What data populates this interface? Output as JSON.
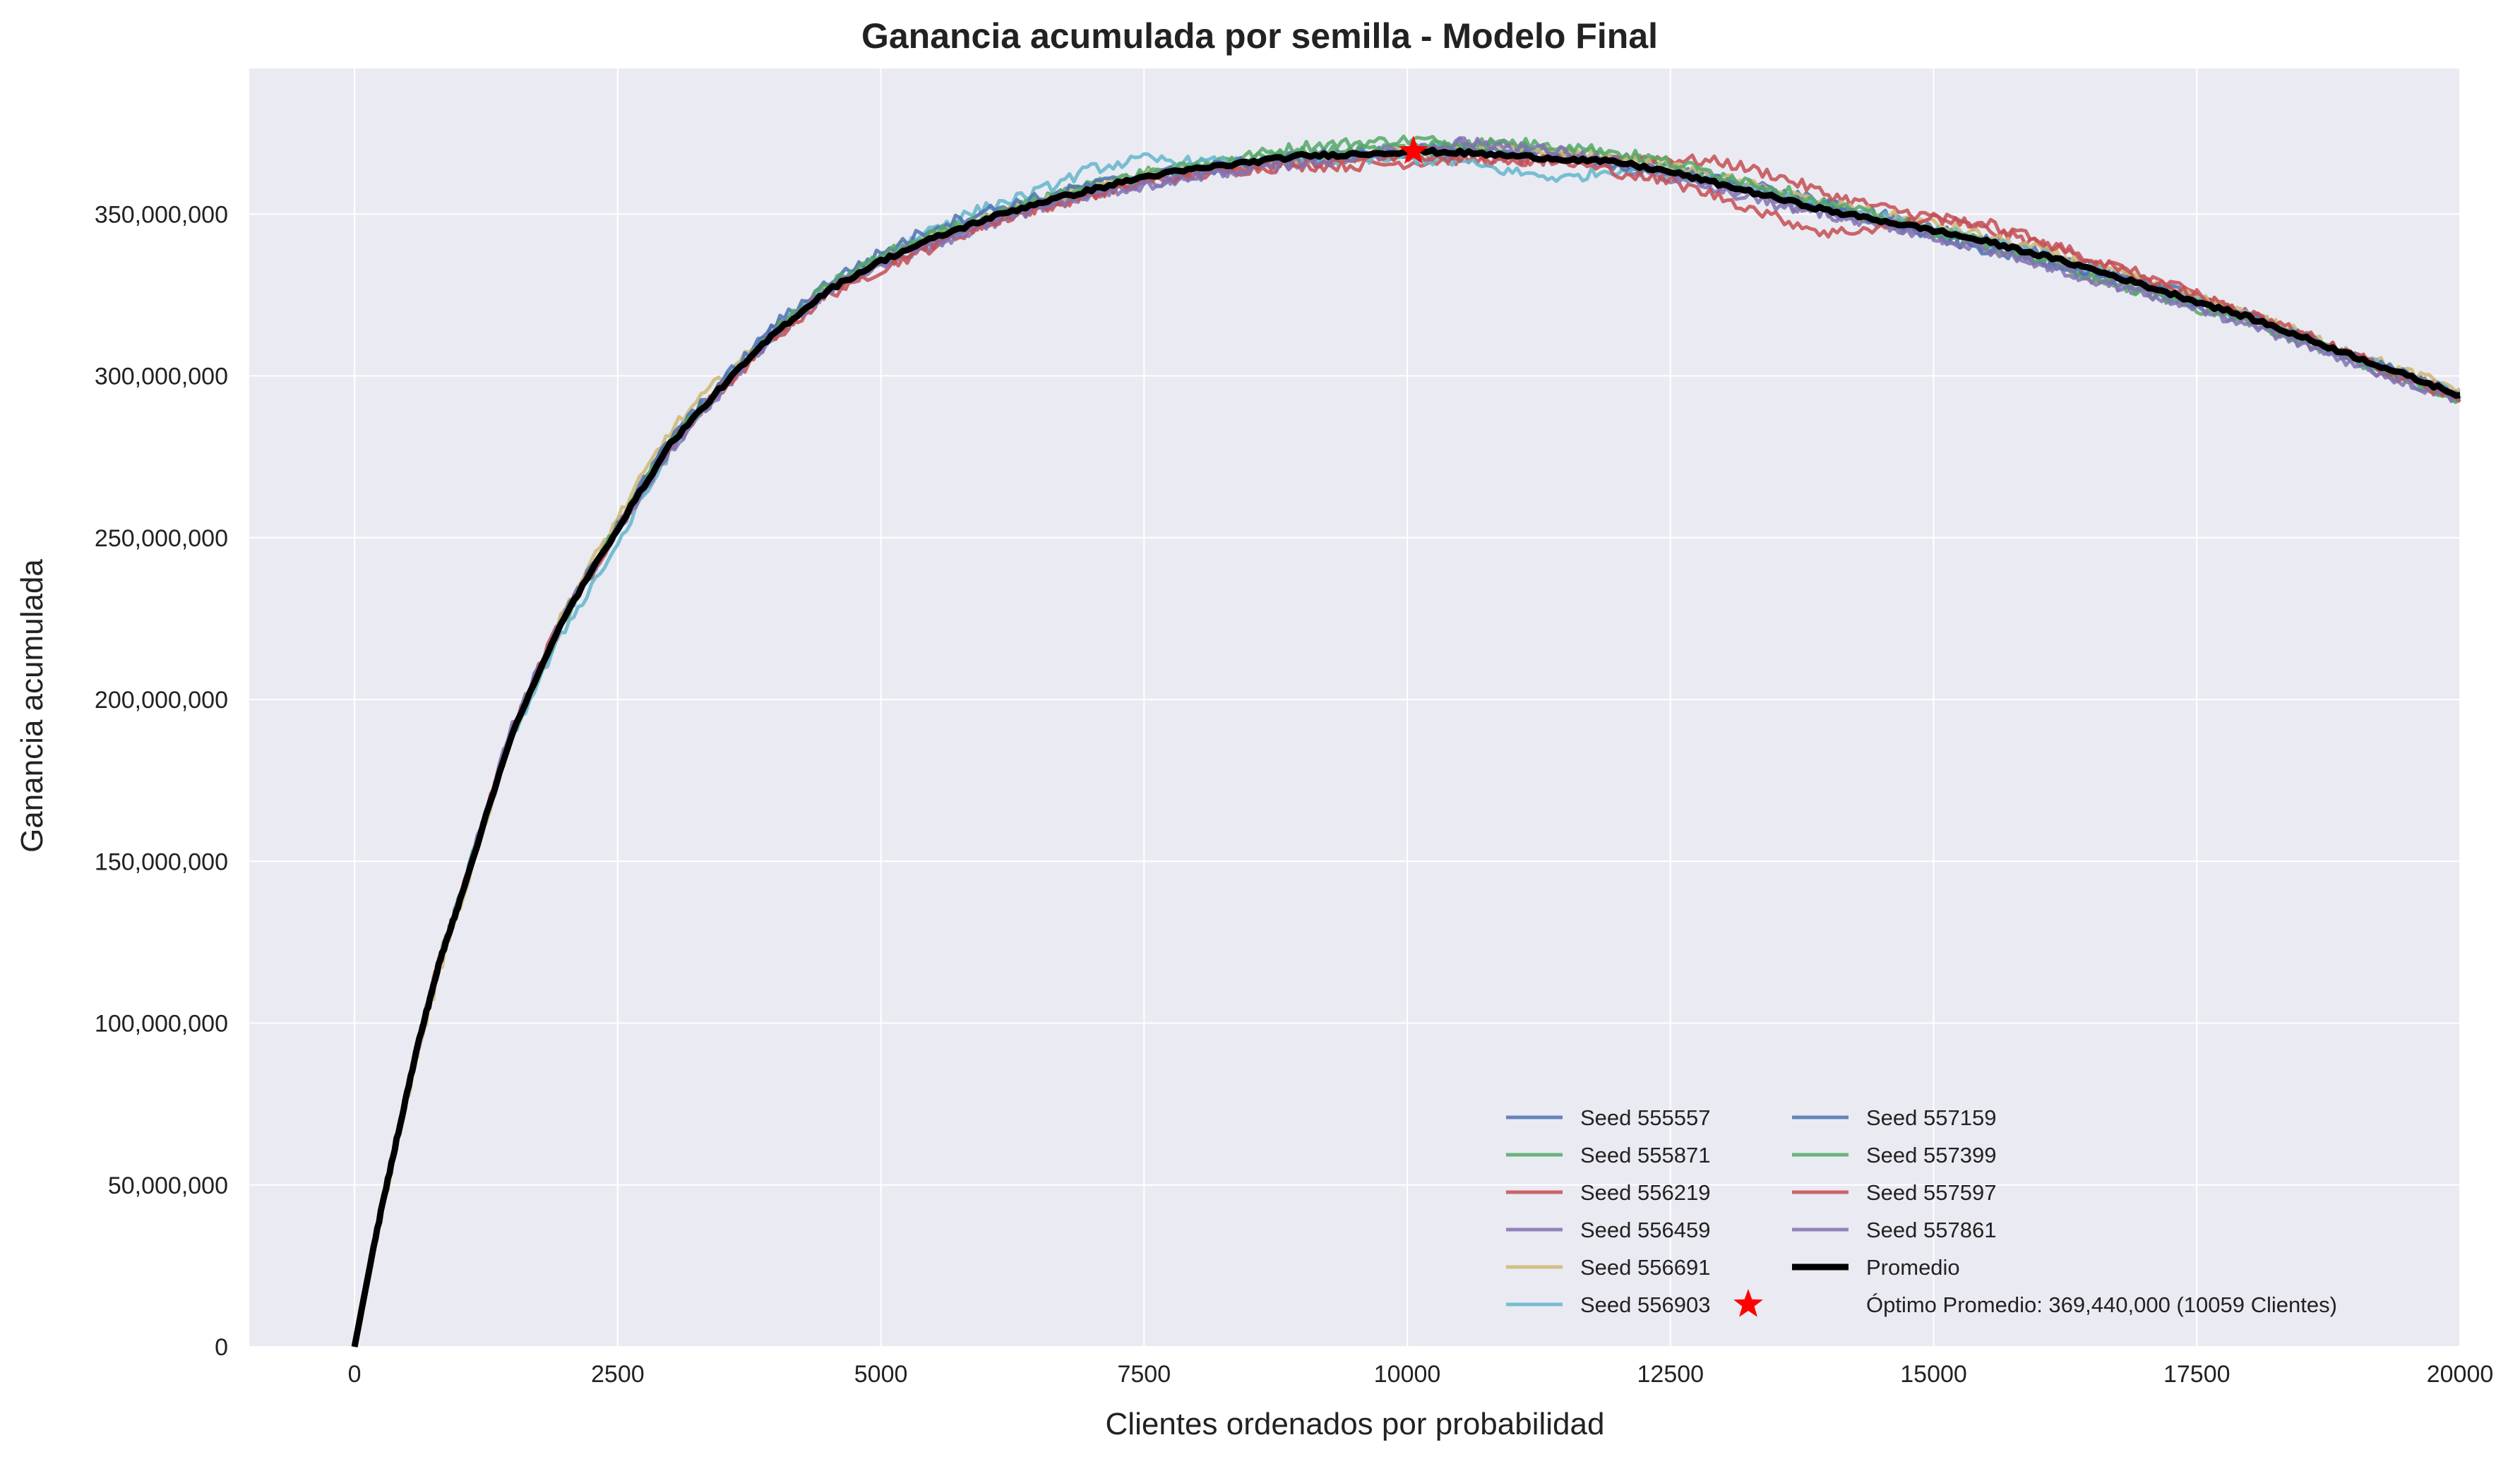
{
  "chart_data": {
    "type": "line",
    "title": "Ganancia acumulada por semilla - Modelo Final",
    "xlabel": "Clientes ordenados por probabilidad",
    "ylabel": "Ganancia acumulada",
    "xlim": [
      -1000,
      20000
    ],
    "ylim": [
      0,
      395000000
    ],
    "x_ticks": [
      0,
      2500,
      5000,
      7500,
      10000,
      12500,
      15000,
      17500,
      20000
    ],
    "x_tick_labels": [
      "0",
      "2500",
      "5000",
      "7500",
      "10000",
      "12500",
      "15000",
      "17500",
      "20000"
    ],
    "y_ticks": [
      0,
      50000000,
      100000000,
      150000000,
      200000000,
      250000000,
      300000000,
      350000000
    ],
    "y_tick_labels": [
      "0",
      "50,000,000",
      "100,000,000",
      "150,000,000",
      "200,000,000",
      "250,000,000",
      "300,000,000",
      "350,000,000"
    ],
    "grid": true,
    "legend_position": "lower-right",
    "x": [
      0,
      200,
      400,
      600,
      800,
      1000,
      1500,
      2000,
      2500,
      3000,
      3500,
      4000,
      4500,
      5000,
      5500,
      6000,
      6500,
      7000,
      7500,
      8000,
      8500,
      9000,
      9500,
      10059,
      10500,
      11000,
      11500,
      12000,
      12500,
      13000,
      13500,
      14000,
      14500,
      15000,
      15500,
      16000,
      16500,
      17000,
      17500,
      18000,
      18500,
      19000,
      19500,
      20000
    ],
    "series": [
      {
        "name": "Seed 555557",
        "color": "#4c72b0",
        "values": [
          0,
          34000000,
          64000000,
          93000000,
          118000000,
          138000000,
          190000000,
          226000000,
          254000000,
          280000000,
          298000000,
          315000000,
          327000000,
          336000000,
          343000000,
          348000000,
          353000000,
          357000000,
          361000000,
          363000000,
          365000000,
          367000000,
          368000000,
          369000000,
          369000000,
          368000000,
          367000000,
          366000000,
          364000000,
          361000000,
          357000000,
          354000000,
          350000000,
          346000000,
          342000000,
          338000000,
          334000000,
          329000000,
          324000000,
          318000000,
          312000000,
          306000000,
          300000000,
          295000000
        ]
      },
      {
        "name": "Seed 555871",
        "color": "#55a868",
        "values": [
          0,
          34500000,
          64500000,
          94000000,
          119000000,
          139000000,
          189000000,
          225000000,
          253000000,
          279000000,
          297000000,
          313000000,
          327000000,
          336000000,
          343000000,
          349000000,
          354000000,
          359000000,
          363000000,
          366000000,
          368000000,
          371000000,
          372000000,
          373000000,
          372000000,
          371000000,
          370000000,
          368000000,
          365000000,
          361000000,
          356000000,
          352000000,
          348000000,
          344000000,
          340000000,
          336000000,
          331000000,
          326000000,
          321000000,
          317000000,
          311000000,
          305000000,
          299000000,
          292000000
        ]
      },
      {
        "name": "Seed 556219",
        "color": "#c44e52",
        "values": [
          0,
          33500000,
          63500000,
          93500000,
          119000000,
          138000000,
          192000000,
          227000000,
          253000000,
          278000000,
          296000000,
          312000000,
          325000000,
          333000000,
          340000000,
          347000000,
          352000000,
          356000000,
          360000000,
          362000000,
          364000000,
          365000000,
          365000000,
          366000000,
          367000000,
          366000000,
          367000000,
          368000000,
          367000000,
          366000000,
          362000000,
          356000000,
          352000000,
          349000000,
          345000000,
          341000000,
          336000000,
          331000000,
          325000000,
          319000000,
          313000000,
          306000000,
          300000000,
          293000000
        ]
      },
      {
        "name": "Seed 556459",
        "color": "#8172b2",
        "values": [
          0,
          34000000,
          64000000,
          92000000,
          117000000,
          139000000,
          192000000,
          227000000,
          252000000,
          277000000,
          296000000,
          313000000,
          326000000,
          335000000,
          341000000,
          346000000,
          352000000,
          356000000,
          359000000,
          362000000,
          364000000,
          366000000,
          367000000,
          369000000,
          372000000,
          371000000,
          368000000,
          365000000,
          361000000,
          357000000,
          353000000,
          350000000,
          347000000,
          343000000,
          339000000,
          335000000,
          330000000,
          326000000,
          321000000,
          316000000,
          310000000,
          304000000,
          298000000,
          293000000
        ]
      },
      {
        "name": "Seed 556691",
        "color": "#ccb974",
        "values": [
          0,
          33000000,
          62000000,
          91000000,
          115000000,
          136000000,
          190000000,
          228000000,
          256000000,
          283000000,
          300000000,
          314000000,
          327000000,
          337000000,
          344000000,
          349000000,
          354000000,
          358000000,
          362000000,
          364000000,
          366000000,
          367000000,
          368000000,
          369000000,
          370000000,
          370000000,
          369000000,
          367000000,
          365000000,
          361000000,
          357000000,
          353000000,
          350000000,
          347000000,
          343000000,
          339000000,
          334000000,
          329000000,
          324000000,
          319000000,
          313000000,
          307000000,
          301000000,
          296000000
        ]
      },
      {
        "name": "Seed 556903",
        "color": "#64b5cd",
        "values": [
          0,
          34000000,
          64000000,
          94000000,
          118000000,
          138000000,
          189000000,
          222000000,
          248000000,
          277000000,
          297000000,
          314000000,
          327000000,
          336000000,
          346000000,
          352000000,
          357000000,
          364000000,
          367000000,
          366000000,
          366000000,
          367000000,
          367000000,
          367000000,
          366000000,
          363000000,
          361000000,
          364000000,
          363000000,
          360000000,
          356000000,
          352000000,
          349000000,
          345000000,
          342000000,
          338000000,
          333000000,
          328000000,
          323000000,
          318000000,
          312000000,
          306000000,
          300000000,
          294000000
        ]
      },
      {
        "name": "Seed 557159",
        "color": "#4c72b0",
        "values": [
          0,
          34200000,
          64200000,
          93800000,
          118500000,
          138500000,
          190500000,
          226500000,
          254500000,
          280500000,
          298500000,
          316000000,
          329000000,
          338000000,
          346000000,
          351000000,
          355000000,
          359000000,
          362000000,
          364000000,
          366000000,
          368000000,
          369000000,
          370000000,
          370000000,
          369000000,
          367000000,
          365000000,
          363000000,
          360000000,
          356000000,
          352000000,
          348000000,
          343000000,
          339000000,
          336000000,
          332000000,
          328000000,
          323000000,
          318000000,
          312000000,
          306000000,
          300000000,
          294000000
        ]
      },
      {
        "name": "Seed 557399",
        "color": "#55a868",
        "values": [
          0,
          34300000,
          64300000,
          93600000,
          118800000,
          138800000,
          189500000,
          225500000,
          253500000,
          279500000,
          297500000,
          314000000,
          328000000,
          337000000,
          344000000,
          349000000,
          354000000,
          358000000,
          362000000,
          365000000,
          367000000,
          369000000,
          370000000,
          371000000,
          372000000,
          372000000,
          371000000,
          369000000,
          366000000,
          362000000,
          358000000,
          353000000,
          349000000,
          345000000,
          341000000,
          336000000,
          331000000,
          326000000,
          322000000,
          317000000,
          311000000,
          305000000,
          299000000,
          293000000
        ]
      },
      {
        "name": "Seed 557597",
        "color": "#c44e52",
        "values": [
          0,
          33800000,
          63800000,
          93800000,
          118800000,
          138200000,
          191000000,
          226000000,
          252500000,
          278500000,
          296500000,
          313000000,
          326000000,
          334000000,
          341000000,
          347000000,
          352000000,
          356000000,
          360000000,
          363000000,
          365000000,
          366000000,
          367000000,
          368000000,
          368000000,
          367000000,
          366000000,
          363000000,
          360000000,
          355000000,
          349000000,
          344000000,
          346000000,
          349000000,
          347000000,
          342000000,
          336000000,
          330000000,
          325000000,
          319000000,
          313000000,
          306000000,
          299000000,
          292000000
        ]
      },
      {
        "name": "Seed 557861",
        "color": "#8172b2",
        "values": [
          0,
          34100000,
          64100000,
          92500000,
          117500000,
          138500000,
          191500000,
          226500000,
          252500000,
          277500000,
          296500000,
          313500000,
          326500000,
          335500000,
          341500000,
          347000000,
          352000000,
          356000000,
          359000000,
          362000000,
          364000000,
          366000000,
          368000000,
          370000000,
          372000000,
          371000000,
          369000000,
          366000000,
          362000000,
          358000000,
          354000000,
          350000000,
          347000000,
          343000000,
          339000000,
          335000000,
          330000000,
          326000000,
          321000000,
          316000000,
          310000000,
          304000000,
          298000000,
          293000000
        ]
      },
      {
        "name": "Promedio",
        "color": "#000000",
        "values": [
          0,
          34000000,
          64000000,
          93000000,
          118000000,
          138000000,
          190000000,
          226000000,
          253000000,
          279000000,
          297000000,
          313500000,
          326500000,
          335500000,
          342500000,
          348500000,
          353500000,
          357500000,
          361500000,
          364000000,
          366000000,
          368000000,
          368500000,
          369440000,
          369000000,
          368000000,
          367000000,
          366000000,
          363000000,
          359000000,
          355000000,
          351000000,
          348000000,
          345000000,
          341500000,
          337500000,
          333000000,
          328000000,
          323000000,
          318000000,
          312000000,
          306000000,
          300000000,
          294000000
        ]
      }
    ],
    "optimum": {
      "label": "Óptimo Promedio: 369,440,000 (10059 Clientes)",
      "x": 10059,
      "y": 369440000,
      "color": "#ff0000",
      "marker": "star"
    }
  }
}
